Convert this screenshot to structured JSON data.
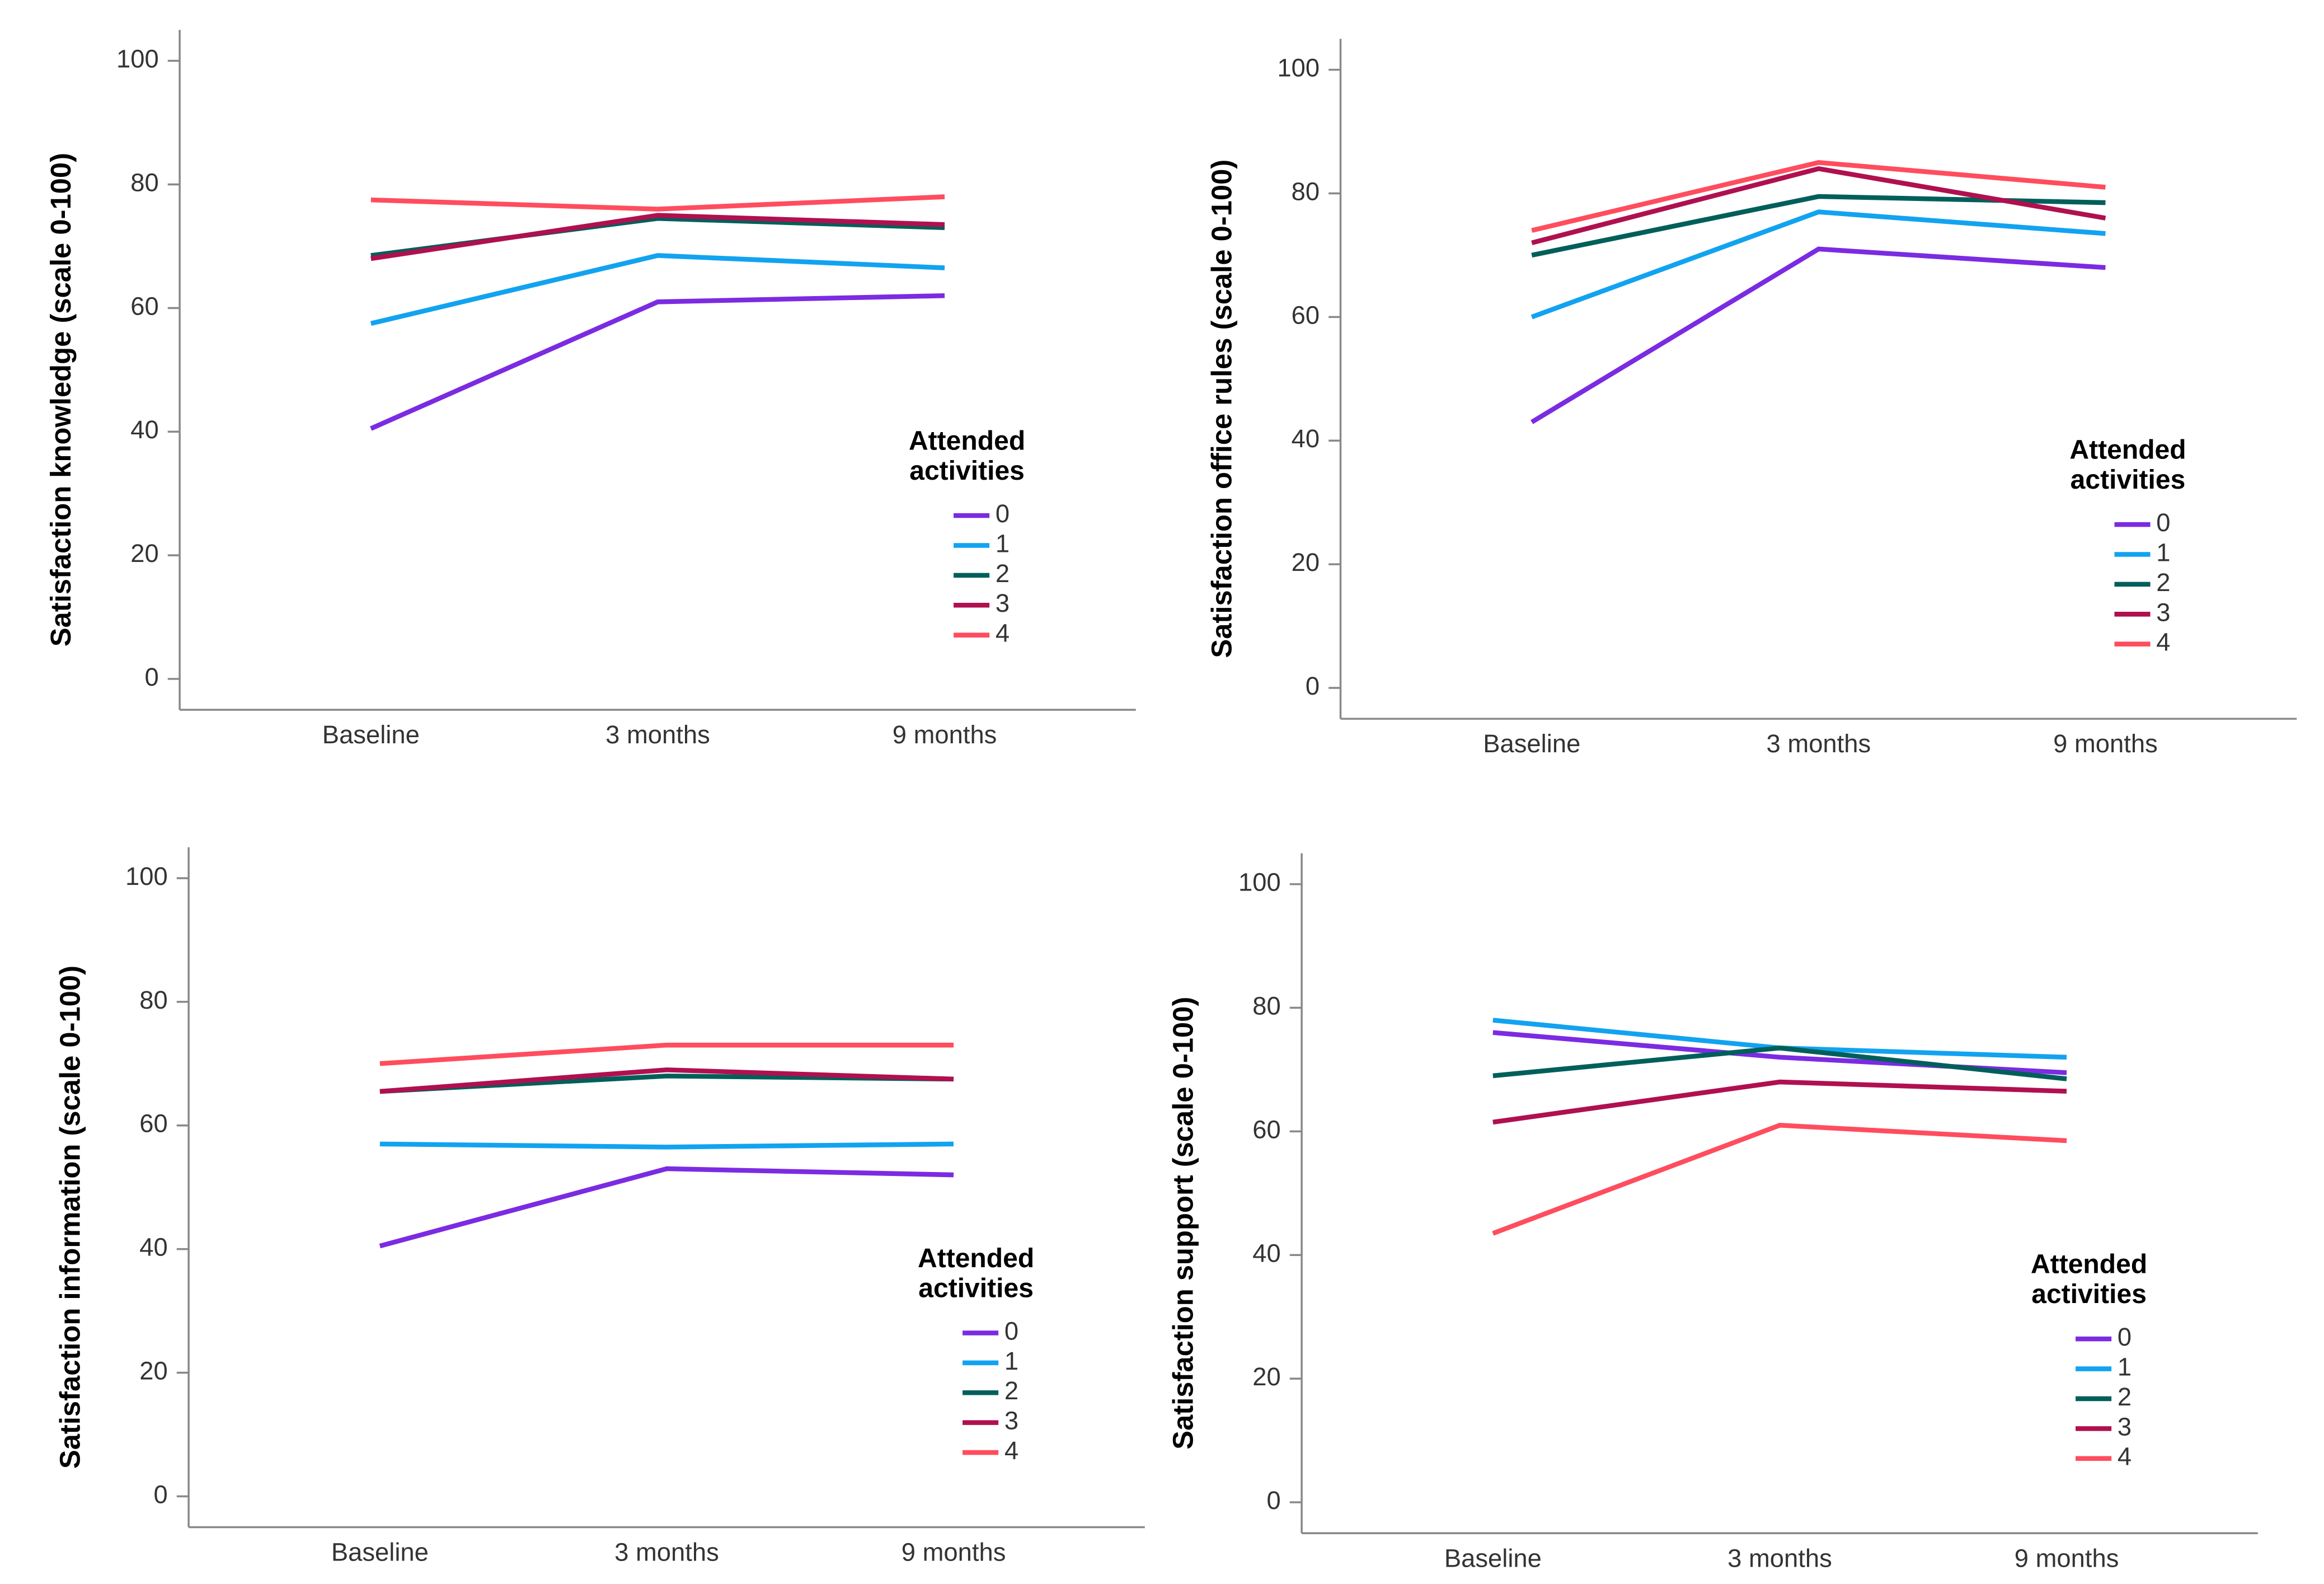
{
  "chart_data": [
    {
      "type": "line",
      "y_label": "Satisfaction knowledge (scale 0-100)",
      "categories": [
        "Baseline",
        "3 months",
        "9 months"
      ],
      "ylim": [
        -5,
        105
      ],
      "yticks": [
        0,
        20,
        40,
        60,
        80,
        100
      ],
      "grid": false,
      "legend_title": "Attended activities",
      "series": [
        {
          "name": "0",
          "color": "#7b2be2",
          "values": [
            40.5,
            61,
            62
          ]
        },
        {
          "name": "1",
          "color": "#12a3f0",
          "values": [
            57.5,
            68.5,
            66.5
          ]
        },
        {
          "name": "2",
          "color": "#005f5a",
          "values": [
            68.5,
            74.5,
            73
          ]
        },
        {
          "name": "3",
          "color": "#b0104f",
          "values": [
            68,
            75,
            73.5
          ]
        },
        {
          "name": "4",
          "color": "#ff4d5e",
          "values": [
            77.5,
            76,
            78
          ]
        }
      ]
    },
    {
      "type": "line",
      "y_label": "Satisfaction office rules (scale 0-100)",
      "categories": [
        "Baseline",
        "3 months",
        "9 months"
      ],
      "ylim": [
        -5,
        105
      ],
      "yticks": [
        0,
        20,
        40,
        60,
        80,
        100
      ],
      "grid": false,
      "legend_title": "Attended activities",
      "series": [
        {
          "name": "0",
          "color": "#7b2be2",
          "values": [
            43,
            71,
            68
          ]
        },
        {
          "name": "1",
          "color": "#12a3f0",
          "values": [
            60,
            77,
            73.5
          ]
        },
        {
          "name": "2",
          "color": "#005f5a",
          "values": [
            70,
            79.5,
            78.5
          ]
        },
        {
          "name": "3",
          "color": "#b0104f",
          "values": [
            72,
            84,
            76
          ]
        },
        {
          "name": "4",
          "color": "#ff4d5e",
          "values": [
            74,
            85,
            81
          ]
        }
      ]
    },
    {
      "type": "line",
      "y_label": "Satisfaction information (scale 0-100)",
      "categories": [
        "Baseline",
        "3 months",
        "9 months"
      ],
      "ylim": [
        -5,
        105
      ],
      "yticks": [
        0,
        20,
        40,
        60,
        80,
        100
      ],
      "grid": false,
      "legend_title": "Attended activities",
      "series": [
        {
          "name": "0",
          "color": "#7b2be2",
          "values": [
            40.5,
            53,
            52
          ]
        },
        {
          "name": "1",
          "color": "#12a3f0",
          "values": [
            57,
            56.5,
            57
          ]
        },
        {
          "name": "2",
          "color": "#005f5a",
          "values": [
            65.5,
            68,
            67.5
          ]
        },
        {
          "name": "3",
          "color": "#b0104f",
          "values": [
            65.5,
            69,
            67.5
          ]
        },
        {
          "name": "4",
          "color": "#ff4d5e",
          "values": [
            70,
            73,
            73
          ]
        }
      ]
    },
    {
      "type": "line",
      "y_label": "Satisfaction support (scale 0-100)",
      "categories": [
        "Baseline",
        "3 months",
        "9 months"
      ],
      "ylim": [
        -5,
        105
      ],
      "yticks": [
        0,
        20,
        40,
        60,
        80,
        100
      ],
      "grid": false,
      "legend_title": "Attended activities",
      "series": [
        {
          "name": "0",
          "color": "#7b2be2",
          "values": [
            76,
            72,
            69.5
          ]
        },
        {
          "name": "1",
          "color": "#12a3f0",
          "values": [
            78,
            73.5,
            72
          ]
        },
        {
          "name": "2",
          "color": "#005f5a",
          "values": [
            69,
            73.5,
            68.5
          ]
        },
        {
          "name": "3",
          "color": "#b0104f",
          "values": [
            61.5,
            68,
            66.5
          ]
        },
        {
          "name": "4",
          "color": "#ff4d5e",
          "values": [
            43.5,
            61,
            58.5
          ]
        }
      ]
    }
  ]
}
